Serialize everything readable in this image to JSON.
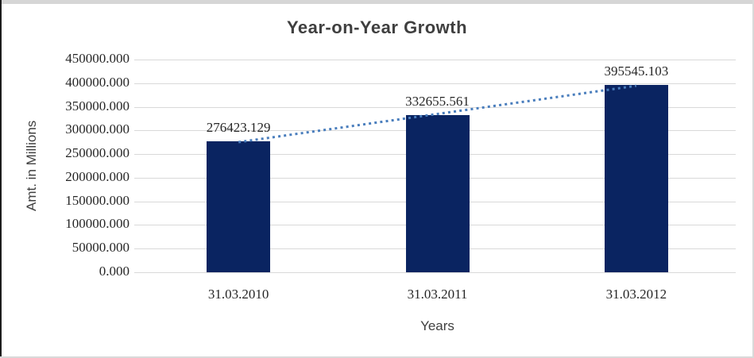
{
  "frame": {
    "top_strip_color": "#d6d6d6",
    "left_edge_color": "#1c1c1c",
    "border_color": "#d9d9d9",
    "background": "#ffffff"
  },
  "chart_data": {
    "type": "bar",
    "title": "Year-on-Year Growth",
    "xlabel": "Years",
    "ylabel": "Amt. in Millions",
    "categories": [
      "31.03.2010",
      "31.03.2011",
      "31.03.2012"
    ],
    "values": [
      276423.129,
      332655.561,
      395545.103
    ],
    "data_labels": [
      "276423.129",
      "332655.561",
      "395545.103"
    ],
    "ylim": [
      0,
      450000
    ],
    "ytick_values": [
      0,
      50000,
      100000,
      150000,
      200000,
      250000,
      300000,
      350000,
      400000,
      450000
    ],
    "ytick_labels": [
      "0.000",
      "50000.000",
      "100000.000",
      "150000.000",
      "200000.000",
      "250000.000",
      "300000.000",
      "350000.000",
      "400000.000",
      "450000.000"
    ],
    "grid": true,
    "legend": "none",
    "trendline": {
      "type": "linear",
      "style": "dotted"
    },
    "colors": {
      "bar": "#0a2461",
      "trendline": "#4a7ebd",
      "gridline": "#d9d9d9",
      "title_text": "#3f3f3f",
      "axis_title_text": "#404040",
      "tick_text": "#262626"
    }
  }
}
